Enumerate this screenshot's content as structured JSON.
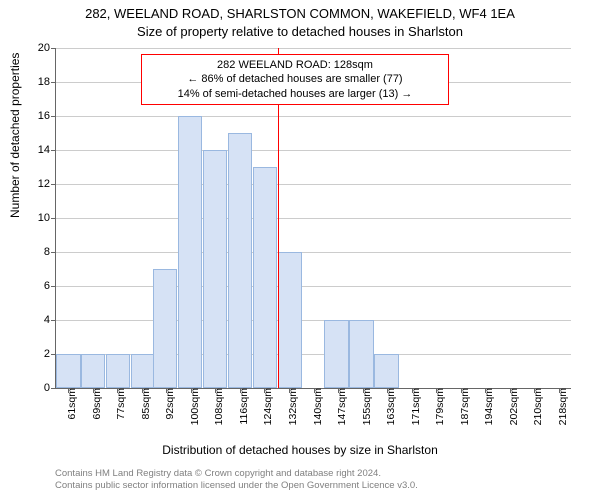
{
  "titles": {
    "main": "282, WEELAND ROAD, SHARLSTON COMMON, WAKEFIELD, WF4 1EA",
    "sub": "Size of property relative to detached houses in Sharlston"
  },
  "ylabel": "Number of detached properties",
  "xlabel": "Distribution of detached houses by size in Sharlston",
  "chart": {
    "type": "histogram",
    "ylim": [
      0,
      20
    ],
    "ytick_step": 2,
    "grid_color": "#cccccc",
    "axis_color": "#666666",
    "bar_fill": "#d6e2f5",
    "bar_stroke": "#9ab8e0",
    "background": "#ffffff",
    "refline_color": "#ff0000",
    "refline_x": 128,
    "x_unit": "sqm",
    "x_start": 57,
    "x_end": 222,
    "xtick_start": 61,
    "xtick_step": 7.85,
    "xtick_count": 21,
    "bar_bin_width": 7.85,
    "bars": [
      {
        "x0": 57,
        "h": 2
      },
      {
        "x0": 65,
        "h": 2
      },
      {
        "x0": 73,
        "h": 2
      },
      {
        "x0": 81,
        "h": 2
      },
      {
        "x0": 88,
        "h": 7
      },
      {
        "x0": 96,
        "h": 16
      },
      {
        "x0": 104,
        "h": 14
      },
      {
        "x0": 112,
        "h": 15
      },
      {
        "x0": 120,
        "h": 13
      },
      {
        "x0": 128,
        "h": 8
      },
      {
        "x0": 135,
        "h": 0
      },
      {
        "x0": 143,
        "h": 4
      },
      {
        "x0": 151,
        "h": 4
      },
      {
        "x0": 159,
        "h": 2
      },
      {
        "x0": 166,
        "h": 0
      },
      {
        "x0": 174,
        "h": 0
      },
      {
        "x0": 182,
        "h": 0
      },
      {
        "x0": 190,
        "h": 0
      },
      {
        "x0": 198,
        "h": 0
      },
      {
        "x0": 206,
        "h": 0
      },
      {
        "x0": 213,
        "h": 0
      }
    ]
  },
  "annotation": {
    "line1": "282 WEELAND ROAD: 128sqm",
    "line2": "← 86% of detached houses are smaller (77)",
    "line3": "14% of semi-detached houses are larger (13) →",
    "box_border": "#ff0000",
    "font_size": 11
  },
  "attribution": {
    "line1": "Contains HM Land Registry data © Crown copyright and database right 2024.",
    "line2": "Contains public sector information licensed under the Open Government Licence v3.0.",
    "color": "#808080"
  }
}
